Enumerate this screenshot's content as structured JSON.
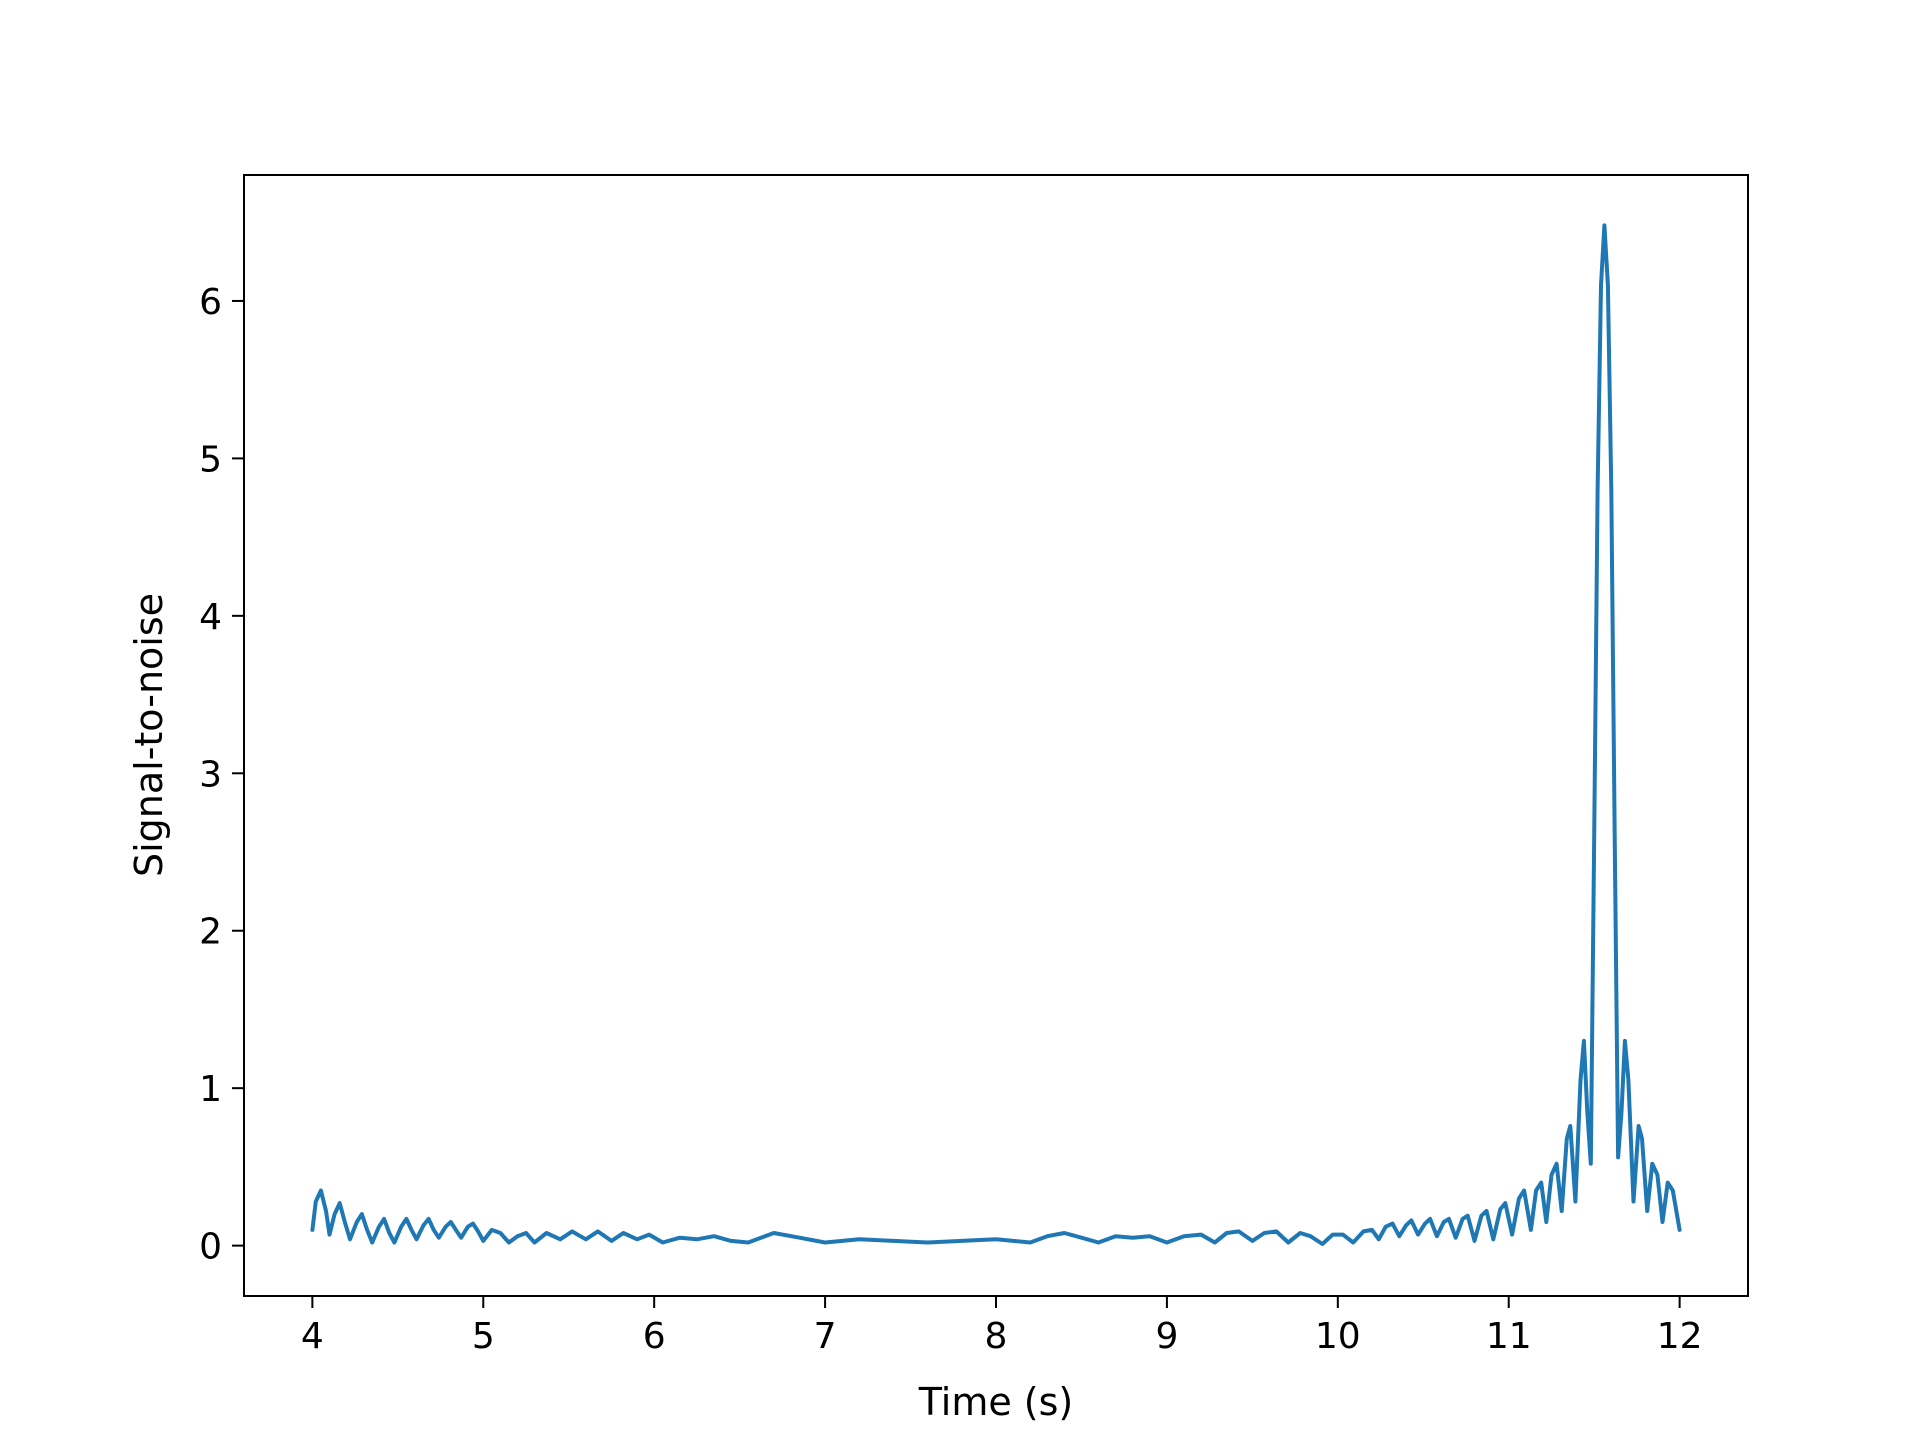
{
  "chart_data": {
    "type": "line",
    "title": "",
    "xlabel": "Time (s)",
    "ylabel": "Signal-to-noise",
    "xlim": [
      3.6,
      12.4
    ],
    "ylim": [
      -0.32,
      6.8
    ],
    "grid": false,
    "x_ticks": [
      4,
      5,
      6,
      7,
      8,
      9,
      10,
      11,
      12
    ],
    "y_ticks": [
      0,
      1,
      2,
      3,
      4,
      5,
      6
    ],
    "series": [
      {
        "color": "#1f77b4",
        "points": [
          [
            4.0,
            0.1
          ],
          [
            4.02,
            0.28
          ],
          [
            4.05,
            0.35
          ],
          [
            4.08,
            0.22
          ],
          [
            4.1,
            0.07
          ],
          [
            4.13,
            0.2
          ],
          [
            4.16,
            0.27
          ],
          [
            4.19,
            0.15
          ],
          [
            4.22,
            0.04
          ],
          [
            4.26,
            0.15
          ],
          [
            4.29,
            0.2
          ],
          [
            4.32,
            0.1
          ],
          [
            4.35,
            0.02
          ],
          [
            4.39,
            0.12
          ],
          [
            4.42,
            0.17
          ],
          [
            4.45,
            0.08
          ],
          [
            4.48,
            0.02
          ],
          [
            4.52,
            0.12
          ],
          [
            4.55,
            0.17
          ],
          [
            4.58,
            0.1
          ],
          [
            4.61,
            0.04
          ],
          [
            4.65,
            0.13
          ],
          [
            4.68,
            0.17
          ],
          [
            4.71,
            0.1
          ],
          [
            4.74,
            0.05
          ],
          [
            4.78,
            0.12
          ],
          [
            4.81,
            0.15
          ],
          [
            4.84,
            0.1
          ],
          [
            4.87,
            0.05
          ],
          [
            4.91,
            0.12
          ],
          [
            4.94,
            0.14
          ],
          [
            4.97,
            0.09
          ],
          [
            5.0,
            0.03
          ],
          [
            5.05,
            0.1
          ],
          [
            5.1,
            0.08
          ],
          [
            5.15,
            0.02
          ],
          [
            5.2,
            0.06
          ],
          [
            5.25,
            0.08
          ],
          [
            5.3,
            0.02
          ],
          [
            5.37,
            0.08
          ],
          [
            5.45,
            0.04
          ],
          [
            5.52,
            0.09
          ],
          [
            5.6,
            0.04
          ],
          [
            5.67,
            0.09
          ],
          [
            5.75,
            0.03
          ],
          [
            5.82,
            0.08
          ],
          [
            5.9,
            0.04
          ],
          [
            5.97,
            0.07
          ],
          [
            6.05,
            0.02
          ],
          [
            6.15,
            0.05
          ],
          [
            6.25,
            0.04
          ],
          [
            6.35,
            0.06
          ],
          [
            6.45,
            0.03
          ],
          [
            6.55,
            0.02
          ],
          [
            6.7,
            0.08
          ],
          [
            6.85,
            0.05
          ],
          [
            7.0,
            0.02
          ],
          [
            7.1,
            0.03
          ],
          [
            7.2,
            0.04
          ],
          [
            7.4,
            0.03
          ],
          [
            7.6,
            0.02
          ],
          [
            7.8,
            0.03
          ],
          [
            8.0,
            0.04
          ],
          [
            8.1,
            0.03
          ],
          [
            8.2,
            0.02
          ],
          [
            8.3,
            0.06
          ],
          [
            8.4,
            0.08
          ],
          [
            8.5,
            0.05
          ],
          [
            8.6,
            0.02
          ],
          [
            8.7,
            0.06
          ],
          [
            8.8,
            0.05
          ],
          [
            8.9,
            0.06
          ],
          [
            9.0,
            0.02
          ],
          [
            9.1,
            0.06
          ],
          [
            9.2,
            0.07
          ],
          [
            9.28,
            0.02
          ],
          [
            9.35,
            0.08
          ],
          [
            9.42,
            0.09
          ],
          [
            9.5,
            0.03
          ],
          [
            9.57,
            0.08
          ],
          [
            9.64,
            0.09
          ],
          [
            9.71,
            0.02
          ],
          [
            9.78,
            0.08
          ],
          [
            9.84,
            0.06
          ],
          [
            9.91,
            0.01
          ],
          [
            9.97,
            0.07
          ],
          [
            10.03,
            0.07
          ],
          [
            10.09,
            0.02
          ],
          [
            10.15,
            0.09
          ],
          [
            10.2,
            0.1
          ],
          [
            10.24,
            0.04
          ],
          [
            10.28,
            0.12
          ],
          [
            10.32,
            0.14
          ],
          [
            10.36,
            0.06
          ],
          [
            10.4,
            0.13
          ],
          [
            10.43,
            0.16
          ],
          [
            10.47,
            0.07
          ],
          [
            10.51,
            0.14
          ],
          [
            10.54,
            0.17
          ],
          [
            10.58,
            0.06
          ],
          [
            10.62,
            0.15
          ],
          [
            10.65,
            0.17
          ],
          [
            10.69,
            0.05
          ],
          [
            10.73,
            0.17
          ],
          [
            10.76,
            0.19
          ],
          [
            10.8,
            0.03
          ],
          [
            10.84,
            0.19
          ],
          [
            10.87,
            0.22
          ],
          [
            10.91,
            0.04
          ],
          [
            10.95,
            0.23
          ],
          [
            10.98,
            0.27
          ],
          [
            11.02,
            0.07
          ],
          [
            11.06,
            0.3
          ],
          [
            11.09,
            0.35
          ],
          [
            11.13,
            0.1
          ],
          [
            11.16,
            0.35
          ],
          [
            11.19,
            0.4
          ],
          [
            11.22,
            0.15
          ],
          [
            11.25,
            0.45
          ],
          [
            11.28,
            0.52
          ],
          [
            11.31,
            0.22
          ],
          [
            11.34,
            0.68
          ],
          [
            11.36,
            0.76
          ],
          [
            11.39,
            0.28
          ],
          [
            11.42,
            1.05
          ],
          [
            11.44,
            1.3
          ],
          [
            11.46,
            0.85
          ],
          [
            11.48,
            0.52
          ],
          [
            11.5,
            2.6
          ],
          [
            11.52,
            4.8
          ],
          [
            11.54,
            6.1
          ],
          [
            11.56,
            6.48
          ],
          [
            11.58,
            6.1
          ],
          [
            11.6,
            4.8
          ],
          [
            11.62,
            2.6
          ],
          [
            11.64,
            0.56
          ],
          [
            11.66,
            0.85
          ],
          [
            11.68,
            1.3
          ],
          [
            11.7,
            1.05
          ],
          [
            11.73,
            0.28
          ],
          [
            11.76,
            0.76
          ],
          [
            11.78,
            0.68
          ],
          [
            11.81,
            0.22
          ],
          [
            11.84,
            0.52
          ],
          [
            11.87,
            0.45
          ],
          [
            11.9,
            0.15
          ],
          [
            11.93,
            0.4
          ],
          [
            11.96,
            0.35
          ],
          [
            12.0,
            0.1
          ]
        ]
      }
    ]
  }
}
